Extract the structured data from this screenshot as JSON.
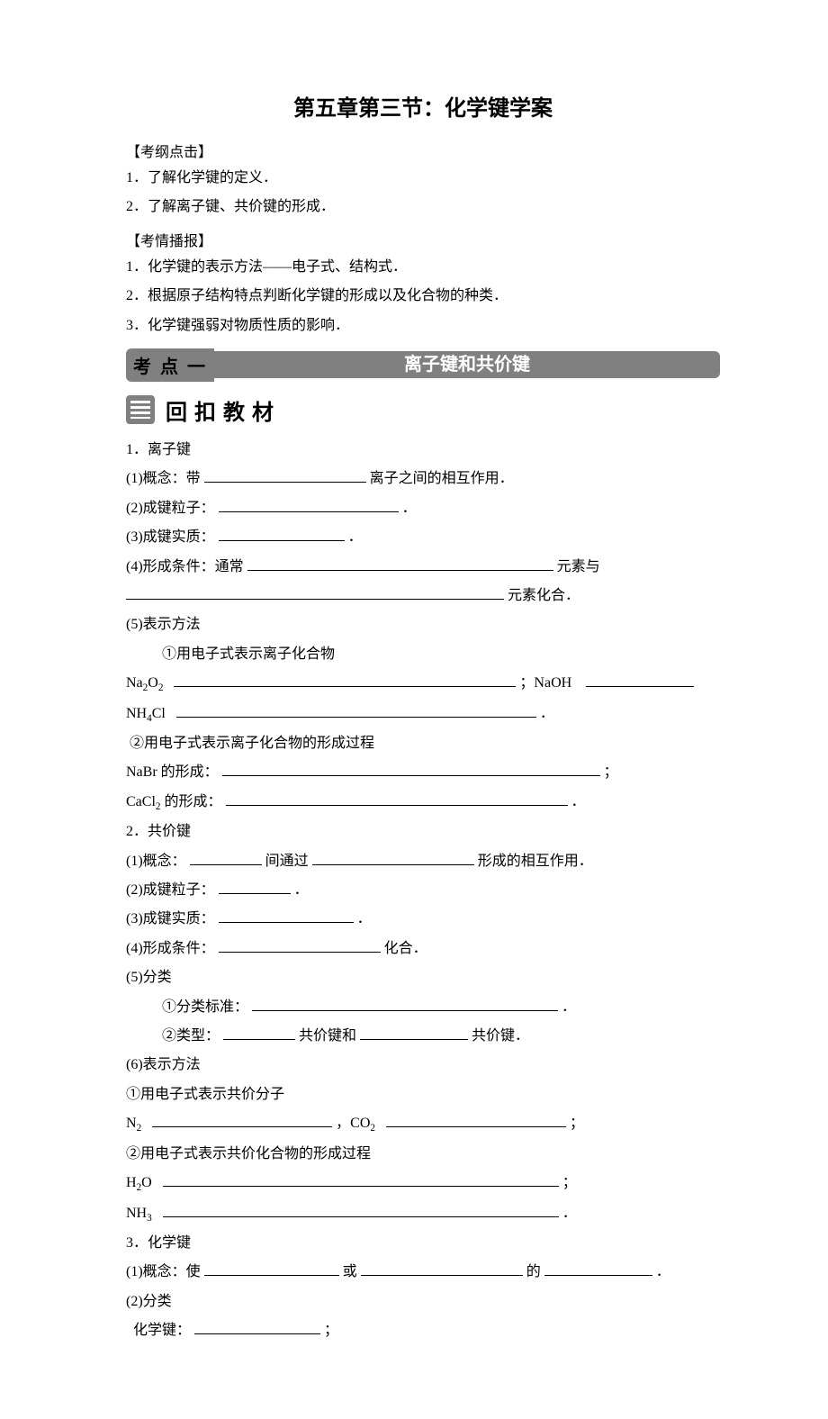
{
  "title": "第五章第三节：化学键学案",
  "outline": {
    "kaogang_label": "【考纲点击】",
    "kaogang_items": [
      "1．了解化学键的定义．",
      "2．了解离子键、共价键的形成．"
    ],
    "kaoqing_label": "【考情播报】",
    "kaoqing_items": [
      "1．化学键的表示方法——电子式、结构式．",
      "2．根据原子结构特点判断化学键的形成以及化合物的种类．",
      "3．化学键强弱对物质性质的影响．"
    ]
  },
  "kaodian": {
    "badge": "考点一",
    "bar": "离子键和共价键"
  },
  "huikou": {
    "title": "回扣教材"
  },
  "ionic": {
    "heading": "1．离子键",
    "p1_pre": "(1)概念：带",
    "p1_post": "离子之间的相互作用．",
    "p2_pre": "(2)成键粒子：",
    "p2_post": "．",
    "p3_pre": "(3)成键实质：",
    "p3_post": "．",
    "p4_pre": "(4)形成条件：通常",
    "p4_mid": "元素与",
    "p4_post": "元素化合．",
    "p5": "(5)表示方法",
    "p5a": "①用电子式表示离子化合物",
    "na2o2_label": "Na₂O₂",
    "naoh_label": "；NaOH",
    "nh4cl_label": "NH₄Cl",
    "p5b": "②用电子式表示离子化合物的形成过程",
    "nabr_pre": "NaBr 的形成：",
    "cacl2_pre": "CaCl₂ 的形成：",
    "period": "．",
    "semicolon": "；"
  },
  "covalent": {
    "heading": "2．共价键",
    "p1_pre": "(1)概念：",
    "p1_mid1": "间通过",
    "p1_post": "形成的相互作用．",
    "p2_pre": "(2)成键粒子：",
    "p2_post": "．",
    "p3_pre": "(3)成键实质：",
    "p3_post": "．",
    "p4_pre": "(4)形成条件：",
    "p4_post": "化合．",
    "p5": "(5)分类",
    "p5a_pre": "①分类标准：",
    "p5a_post": "．",
    "p5b_pre": "②类型：",
    "p5b_mid": "共价键和",
    "p5b_post": "共价键．",
    "p6": "(6)表示方法",
    "p6a": "①用电子式表示共价分子",
    "n2_label": "N₂",
    "co2_label": "，CO₂",
    "p6b": "②用电子式表示共价化合物的形成过程",
    "h2o_label": "H₂O",
    "nh3_label": "NH₃",
    "semicolon": "；",
    "period": "．"
  },
  "chembond": {
    "heading": "3．化学键",
    "p1_pre": "(1)概念：使",
    "p1_mid1": "或",
    "p1_mid2": "的",
    "p1_post": "．",
    "p2": "(2)分类",
    "p2a_pre": "化学键：",
    "p2a_post": "；"
  }
}
